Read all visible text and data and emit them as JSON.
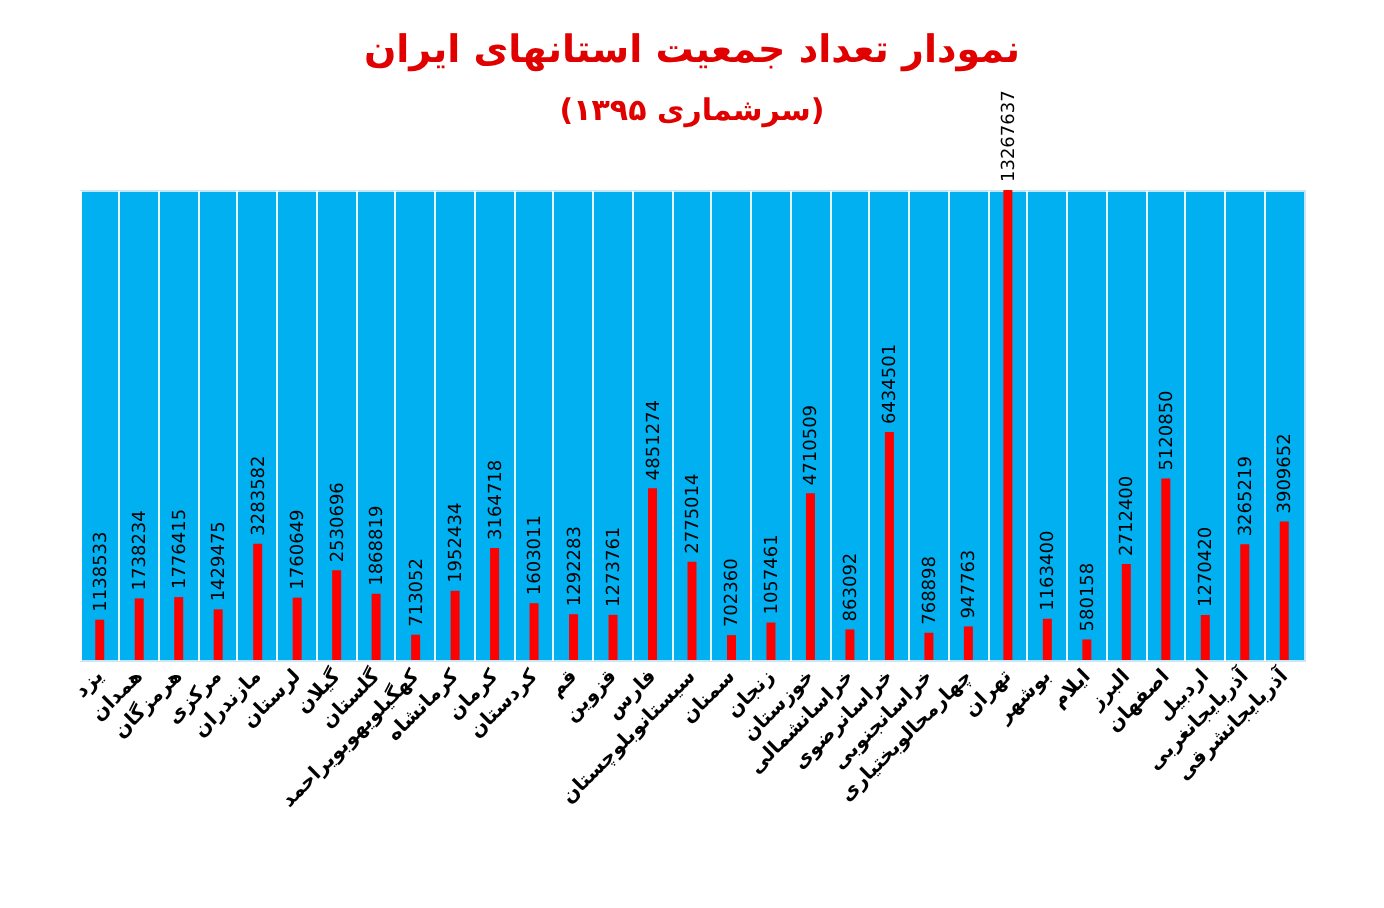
{
  "chart_data": {
    "type": "bar",
    "title": "نمودار تعداد جمعیت استانهای ایران",
    "subtitle": "(سرشماری ۱۳۹۵)",
    "categories": [
      "یزد",
      "همدان",
      "هرمزگان",
      "مرکزی",
      "مازندران",
      "لرستان",
      "گیلان",
      "گلستان",
      "کهگیلویهوبویراحمد",
      "کرمانشاه",
      "کرمان",
      "کردستان",
      "قم",
      "قزوین",
      "فارس",
      "سیستانوبلوچستان",
      "سمنان",
      "زنجان",
      "خوزستان",
      "خراسانشمالی",
      "خراسانرضوی",
      "خراسانجنوبی",
      "چهارمحالوبختیاری",
      "تهران",
      "بوشهر",
      "ایلام",
      "البرز",
      "اصفهان",
      "اردبیل",
      "آذربایجانغربی",
      "آذربایجانشرقی"
    ],
    "values": [
      1138533,
      1738234,
      1776415,
      1429475,
      3283582,
      1760649,
      2530696,
      1868819,
      713052,
      1952434,
      3164718,
      1603011,
      1292283,
      1273761,
      4851274,
      2775014,
      702360,
      1057461,
      4710509,
      863092,
      6434501,
      768898,
      947763,
      13267637,
      1163400,
      580158,
      2712400,
      5120850,
      1270420,
      3265219,
      3909652
    ],
    "color": "#ff0000",
    "data_labels": true,
    "grid": "x"
  }
}
